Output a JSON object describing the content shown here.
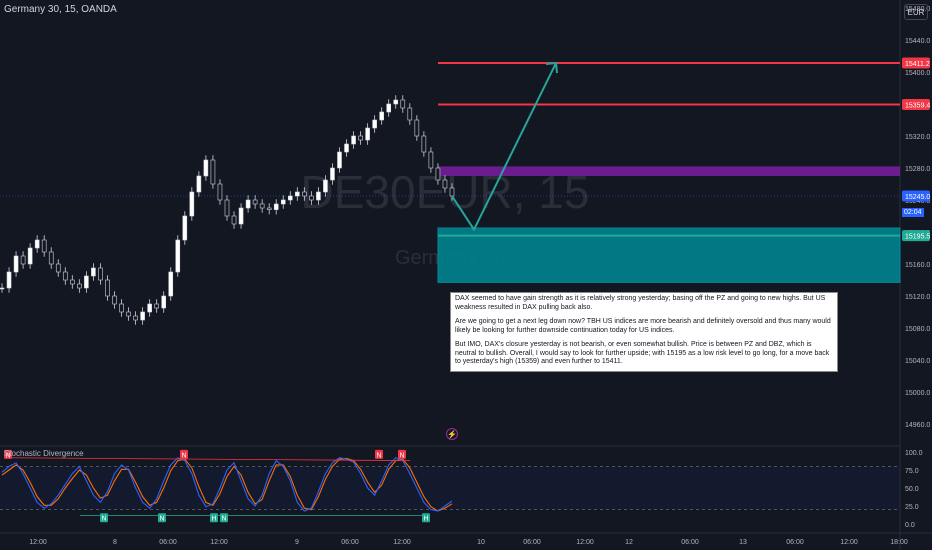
{
  "header": {
    "symbol_title": "Germany 30, 15, OANDA",
    "currency": "EUR"
  },
  "watermark": {
    "symbol": "DE30EUR, 15",
    "name": "Germany 30"
  },
  "price_axis": {
    "ticks": [
      "15480.0",
      "15440.0",
      "15400.0",
      "15360.0",
      "15320.0",
      "15280.0",
      "15240.0",
      "15200.0",
      "15160.0",
      "15120.0",
      "15080.0",
      "15040.0",
      "15000.0",
      "14960.0"
    ],
    "tags": [
      {
        "label": "15411.2",
        "color": "#f23645",
        "price": 15411.2
      },
      {
        "label": "15359.4",
        "color": "#f23645",
        "price": 15359.4
      },
      {
        "label": "15245.0",
        "color": "#2962ff",
        "price": 15245.0
      },
      {
        "label": "15195.5",
        "color": "#22ab94",
        "price": 15195.5
      }
    ],
    "current_time": "02:04"
  },
  "indicator": {
    "title": "Stochastic Divergence",
    "ticks": [
      "100.0",
      "75.0",
      "50.0",
      "25.0",
      "0.0"
    ],
    "markers": [
      {
        "label": "N",
        "type": "bear"
      },
      {
        "label": "N",
        "type": "bear"
      },
      {
        "label": "N",
        "type": "bear"
      },
      {
        "label": "N",
        "type": "bear"
      },
      {
        "label": "N",
        "type": "bull"
      },
      {
        "label": "N",
        "type": "bull"
      },
      {
        "label": "H",
        "type": "bull"
      },
      {
        "label": "N",
        "type": "bull"
      },
      {
        "label": "H",
        "type": "bull"
      }
    ]
  },
  "time_axis": [
    "12:00",
    "8",
    "06:00",
    "12:00",
    "9",
    "06:00",
    "12:00",
    "10",
    "06:00",
    "12:00",
    "12",
    "06:00",
    "13",
    "06:00",
    "12:00",
    "18:00",
    "1"
  ],
  "annotation": {
    "p1": "DAX seemed to have gain strength as it is relatively strong yesterday; basing off the PZ and going to new highs. But US weakness resulted in DAX pulling back also.",
    "p2": "Are we going to get a next leg down now? TBH US indices are more bearish and definitely oversold and thus many would likely be looking for further downside continuation today for US indices.",
    "p3": "But IMO, DAX's closure yesterday is not bearish, or even somewhat bullish. Price is between PZ and DBZ, which is neutral to bullish. Overall, I would say to look for further upside; with 15195 as a low risk level to go long, for a move back to yesterday's high (15359) and even further to 15411."
  },
  "chart_data": {
    "type": "candlestick",
    "symbol": "DE30EUR",
    "interval": "15",
    "ylim": [
      14940,
      15490
    ],
    "close_series": [
      15130,
      15150,
      15170,
      15160,
      15180,
      15190,
      15175,
      15160,
      15150,
      15140,
      15135,
      15130,
      15145,
      15155,
      15140,
      15120,
      15110,
      15100,
      15095,
      15090,
      15100,
      15110,
      15105,
      15120,
      15150,
      15190,
      15220,
      15250,
      15270,
      15290,
      15260,
      15240,
      15220,
      15210,
      15230,
      15240,
      15235,
      15230,
      15228,
      15235,
      15240,
      15245,
      15250,
      15245,
      15240,
      15250,
      15265,
      15280,
      15300,
      15310,
      15320,
      15315,
      15330,
      15340,
      15350,
      15360,
      15365,
      15355,
      15340,
      15320,
      15300,
      15280,
      15265,
      15255,
      15245
    ],
    "key_levels": [
      {
        "price": 15411.2,
        "color": "#f23645"
      },
      {
        "price": 15359.4,
        "color": "#f23645"
      },
      {
        "price": 15195.5,
        "color": "#22ab94"
      }
    ],
    "zones": [
      {
        "from": 15270,
        "to": 15282,
        "color": "#7b1fa2"
      },
      {
        "from": 15137,
        "to": 15205,
        "color": "#00838f"
      }
    ],
    "projection": [
      15245,
      15203,
      15411.2
    ],
    "stochastic": {
      "k": [
        72,
        80,
        85,
        70,
        50,
        30,
        22,
        28,
        40,
        55,
        70,
        80,
        60,
        40,
        30,
        45,
        70,
        82,
        75,
        50,
        30,
        22,
        35,
        60,
        82,
        92,
        88,
        70,
        40,
        24,
        28,
        50,
        75,
        85,
        60,
        35,
        25,
        40,
        70,
        88,
        80,
        60,
        30,
        18,
        22,
        45,
        70,
        85,
        92,
        90,
        86,
        70,
        50,
        40,
        60,
        82,
        92,
        88,
        70,
        50,
        30,
        20,
        18,
        25,
        32
      ],
      "d": [
        68,
        75,
        82,
        75,
        58,
        38,
        26,
        26,
        35,
        50,
        63,
        75,
        68,
        50,
        36,
        40,
        60,
        76,
        76,
        58,
        38,
        26,
        30,
        50,
        74,
        88,
        90,
        78,
        52,
        30,
        26,
        42,
        66,
        80,
        68,
        44,
        28,
        34,
        60,
        82,
        82,
        66,
        40,
        22,
        20,
        38,
        62,
        80,
        90,
        91,
        88,
        76,
        58,
        44,
        54,
        76,
        88,
        90,
        78,
        58,
        38,
        24,
        18,
        22,
        28
      ],
      "overbought": 80,
      "oversold": 20
    }
  }
}
